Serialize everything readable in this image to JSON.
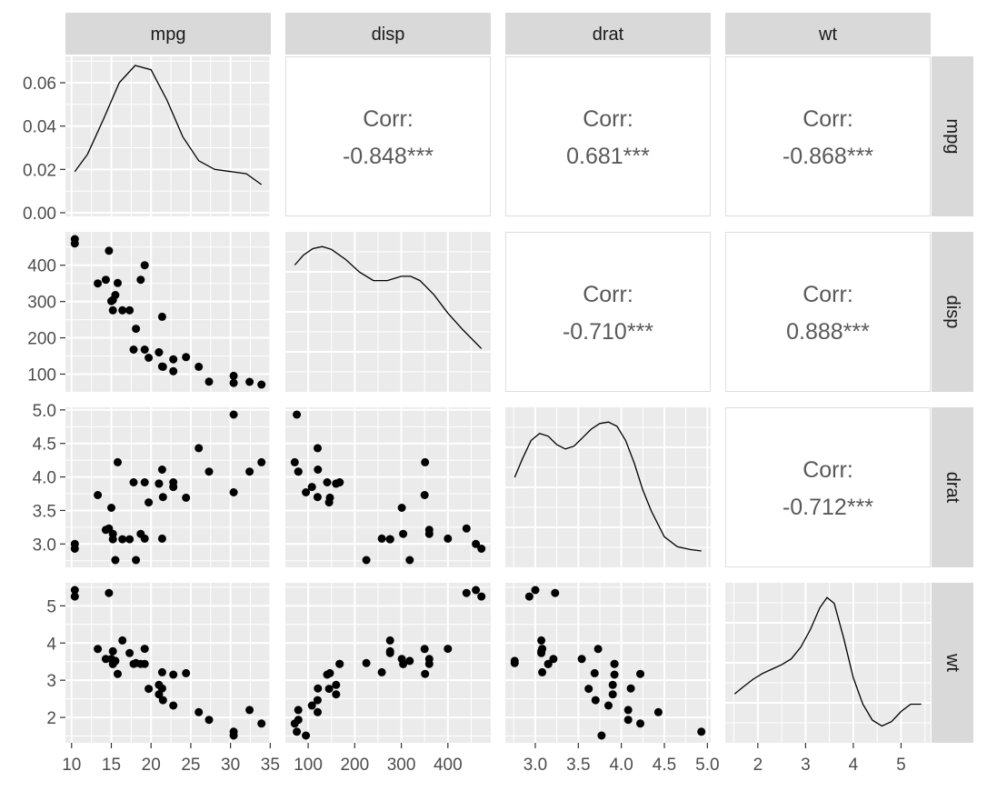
{
  "chart_data": {
    "type": "scatter",
    "variables": [
      "mpg",
      "disp",
      "drat",
      "wt"
    ],
    "strip_labels": {
      "top": [
        "mpg",
        "disp",
        "drat",
        "wt"
      ],
      "right": [
        "mpg",
        "disp",
        "drat",
        "wt"
      ]
    },
    "ranges": {
      "mpg": [
        10.4,
        33.9
      ],
      "disp": [
        71.1,
        472
      ],
      "drat": [
        2.76,
        4.93
      ],
      "wt": [
        1.513,
        5.424
      ]
    },
    "ticks": {
      "mpg": [
        10,
        15,
        20,
        25,
        30,
        35
      ],
      "disp": [
        100,
        200,
        300,
        400
      ],
      "drat": [
        3.0,
        3.5,
        4.0,
        4.5,
        5.0
      ],
      "wt": [
        2,
        3,
        4,
        5
      ],
      "density_y": [
        0.0,
        0.02,
        0.04,
        0.06
      ]
    },
    "tick_labels": {
      "mpg": [
        "10",
        "15",
        "20",
        "25",
        "30",
        "35"
      ],
      "disp": [
        "100",
        "200",
        "300",
        "400"
      ],
      "drat": [
        "3.0",
        "3.5",
        "4.0",
        "4.5",
        "5.0"
      ],
      "wt": [
        "2",
        "3",
        "4",
        "5"
      ],
      "density_y": [
        "0.00",
        "0.02",
        "0.04",
        "0.06"
      ]
    },
    "correlations": [
      {
        "row": "mpg",
        "col": "disp",
        "label": "Corr:",
        "value": "-0.848***"
      },
      {
        "row": "mpg",
        "col": "drat",
        "label": "Corr:",
        "value": "0.681***"
      },
      {
        "row": "mpg",
        "col": "wt",
        "label": "Corr:",
        "value": "-0.868***"
      },
      {
        "row": "disp",
        "col": "drat",
        "label": "Corr:",
        "value": "-0.710***"
      },
      {
        "row": "disp",
        "col": "wt",
        "label": "Corr:",
        "value": "0.888***"
      },
      {
        "row": "drat",
        "col": "wt",
        "label": "Corr:",
        "value": "-0.712***"
      }
    ],
    "points": {
      "mpg": [
        21.0,
        21.0,
        22.8,
        21.4,
        18.7,
        18.1,
        14.3,
        24.4,
        22.8,
        19.2,
        17.8,
        16.4,
        17.3,
        15.2,
        10.4,
        10.4,
        14.7,
        32.4,
        30.4,
        33.9,
        21.5,
        15.5,
        15.2,
        13.3,
        19.2,
        27.3,
        26.0,
        30.4,
        15.8,
        19.7,
        15.0,
        21.4
      ],
      "disp": [
        160,
        160,
        108,
        258,
        360,
        225,
        360,
        146.7,
        140.8,
        167.6,
        167.6,
        275.8,
        275.8,
        275.8,
        472,
        460,
        440,
        78.7,
        75.7,
        71.1,
        120.1,
        318,
        304,
        350,
        400,
        79,
        120.3,
        95.1,
        351,
        145,
        301,
        121
      ],
      "drat": [
        3.9,
        3.9,
        3.85,
        3.08,
        3.15,
        2.76,
        3.21,
        3.69,
        3.92,
        3.92,
        3.92,
        3.07,
        3.07,
        3.07,
        2.93,
        3.0,
        3.23,
        4.08,
        4.93,
        4.22,
        3.7,
        2.76,
        3.15,
        3.73,
        3.08,
        4.08,
        4.43,
        3.77,
        4.22,
        3.62,
        3.54,
        4.11
      ],
      "wt": [
        2.62,
        2.875,
        2.32,
        3.215,
        3.44,
        3.46,
        3.57,
        3.19,
        3.15,
        3.44,
        3.44,
        4.07,
        3.73,
        3.78,
        5.25,
        5.424,
        5.345,
        2.2,
        1.615,
        1.835,
        2.465,
        3.52,
        3.435,
        3.84,
        3.845,
        1.935,
        2.14,
        1.513,
        3.17,
        2.77,
        3.57,
        2.78
      ]
    },
    "density_curves": {
      "mpg": {
        "x": [
          10.4,
          12,
          14,
          16,
          18,
          20,
          22,
          24,
          26,
          28,
          30,
          32,
          33.9
        ],
        "y": [
          0.019,
          0.027,
          0.043,
          0.06,
          0.068,
          0.066,
          0.052,
          0.035,
          0.024,
          0.02,
          0.019,
          0.018,
          0.013
        ]
      },
      "disp": {
        "x": [
          71.1,
          90,
          110,
          130,
          150,
          180,
          210,
          240,
          270,
          300,
          320,
          340,
          370,
          400,
          430,
          472
        ],
        "y": [
          0.87,
          0.94,
          0.985,
          1.0,
          0.98,
          0.91,
          0.82,
          0.76,
          0.76,
          0.79,
          0.79,
          0.76,
          0.66,
          0.53,
          0.42,
          0.28
        ]
      },
      "drat": {
        "x": [
          2.76,
          2.85,
          2.95,
          3.05,
          3.15,
          3.25,
          3.35,
          3.45,
          3.55,
          3.65,
          3.75,
          3.85,
          3.95,
          4.05,
          4.15,
          4.25,
          4.35,
          4.5,
          4.65,
          4.8,
          4.93
        ],
        "y": [
          0.61,
          0.74,
          0.87,
          0.92,
          0.9,
          0.84,
          0.81,
          0.83,
          0.89,
          0.95,
          0.99,
          1.0,
          0.97,
          0.87,
          0.71,
          0.52,
          0.37,
          0.19,
          0.12,
          0.1,
          0.09
        ]
      },
      "wt": {
        "x": [
          1.513,
          1.7,
          1.9,
          2.1,
          2.3,
          2.5,
          2.7,
          2.9,
          3.1,
          3.3,
          3.45,
          3.6,
          3.8,
          4.0,
          4.2,
          4.4,
          4.6,
          4.8,
          5.0,
          5.2,
          5.424
        ],
        "y": [
          0.31,
          0.36,
          0.41,
          0.45,
          0.48,
          0.51,
          0.55,
          0.63,
          0.75,
          0.9,
          0.97,
          0.93,
          0.69,
          0.42,
          0.24,
          0.13,
          0.09,
          0.12,
          0.19,
          0.24,
          0.24
        ]
      }
    },
    "grid": true,
    "legend": "none"
  }
}
